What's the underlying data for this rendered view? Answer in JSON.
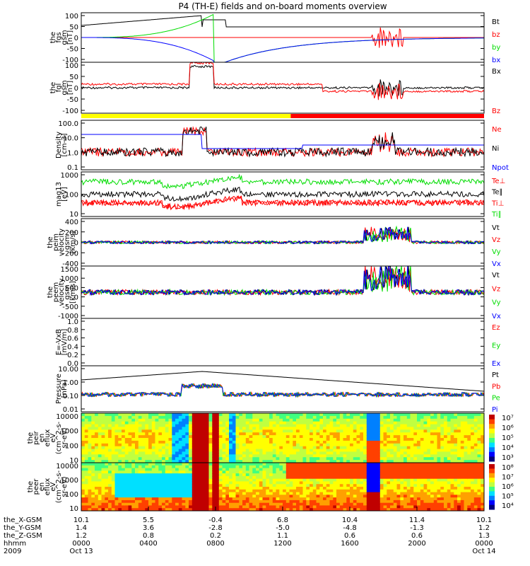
{
  "title": "P4 (TH-E) fields and on-board moments overview",
  "colors": {
    "black": "#000000",
    "red": "#ff0000",
    "green": "#00dd00",
    "blue": "#0000ff",
    "yellow": "#ffff00"
  },
  "chart_data": {
    "type": "line",
    "x_range": [
      "2009-10-13 00:00",
      "2009-10-14 00:00"
    ],
    "panels": [
      {
        "id": "fgs",
        "ylabel": [
          "the",
          "fgs",
          "gsm",
          "[nT]"
        ],
        "yticks": [
          "100",
          "50",
          "0",
          "-50",
          "-100"
        ],
        "ylim": [
          -100,
          100
        ],
        "log": false,
        "legend": [
          {
            "name": "Bt",
            "color": "black"
          },
          {
            "name": "bz",
            "color": "red"
          },
          {
            "name": "by",
            "color": "green"
          },
          {
            "name": "bx",
            "color": "blue"
          }
        ]
      },
      {
        "id": "fgl",
        "ylabel": [
          "the",
          "fgl",
          "gsm",
          "[nT]"
        ],
        "yticks": [
          "100",
          "50",
          "0",
          "-50",
          "-100"
        ],
        "ylim": [
          -120,
          100
        ],
        "log": false,
        "legend": [
          {
            "name": "Bx",
            "color": "black"
          },
          {
            "name": "Bz",
            "color": "red"
          }
        ]
      },
      {
        "id": "density",
        "ylabel": [
          "Density",
          "[cm-3]"
        ],
        "yticks": [
          "100.0",
          "10.0",
          "1.0",
          "0.1"
        ],
        "ylim": [
          0.1,
          100
        ],
        "log": true,
        "legend": [
          {
            "name": "Ne",
            "color": "red"
          },
          {
            "name": "Ni",
            "color": "black"
          },
          {
            "name": "Npot",
            "color": "blue"
          }
        ]
      },
      {
        "id": "temp",
        "ylabel": [
          "mag13",
          "[eV]"
        ],
        "yticks": [
          "1000",
          "100",
          "10"
        ],
        "ylim": [
          10,
          5000
        ],
        "log": true,
        "legend": [
          {
            "name": "Te⊥",
            "color": "red"
          },
          {
            "name": "Te∥",
            "color": "black"
          },
          {
            "name": "Ti⊥",
            "color": "red"
          },
          {
            "name": "Ti∥",
            "color": "green"
          }
        ]
      },
      {
        "id": "peim",
        "ylabel": [
          "the",
          "peim",
          "velocity",
          "gsm",
          "[km/s]"
        ],
        "yticks": [
          "400",
          "200",
          "0",
          "-200",
          "-400"
        ],
        "ylim": [
          -400,
          400
        ],
        "log": false,
        "legend": [
          {
            "name": "Vt",
            "color": "black"
          },
          {
            "name": "Vz",
            "color": "red"
          },
          {
            "name": "Vy",
            "color": "green"
          },
          {
            "name": "Vx",
            "color": "blue"
          }
        ]
      },
      {
        "id": "peem",
        "ylabel": [
          "the",
          "peem",
          "velocity",
          "gsm",
          "[km/s]"
        ],
        "yticks": [
          "1500",
          "1000",
          "500",
          "0",
          "-500",
          "-1000"
        ],
        "ylim": [
          -1300,
          1500
        ],
        "log": false,
        "legend": [
          {
            "name": "Vt",
            "color": "black"
          },
          {
            "name": "Vz",
            "color": "red"
          },
          {
            "name": "Vy",
            "color": "green"
          },
          {
            "name": "Vx",
            "color": "blue"
          }
        ]
      },
      {
        "id": "efield",
        "ylabel": [
          "E=-VxB",
          "[mV/m]"
        ],
        "yticks": [
          "1.0",
          "0.8",
          "0.6",
          "0.4",
          "0.2",
          "0.0"
        ],
        "ylim": [
          0,
          1
        ],
        "log": false,
        "legend": [
          {
            "name": "Ez",
            "color": "red"
          },
          {
            "name": "Ey",
            "color": "green"
          },
          {
            "name": "Ex",
            "color": "blue"
          }
        ]
      },
      {
        "id": "pressure",
        "ylabel": [
          "Pressure",
          "[nPa]"
        ],
        "yticks": [
          "10.00",
          "1.00",
          "0.10",
          "0.01"
        ],
        "ylim": [
          0.003,
          30
        ],
        "log": true,
        "legend": [
          {
            "name": "Pt",
            "color": "black"
          },
          {
            "name": "Pb",
            "color": "red"
          },
          {
            "name": "Pe",
            "color": "green"
          },
          {
            "name": "Pi",
            "color": "blue"
          }
        ]
      },
      {
        "id": "peir",
        "ylabel": [
          "the",
          "peir",
          "en",
          "eflux",
          "eV",
          "(cm^2-s-",
          "sr-eV)"
        ],
        "yticks": [
          "10000",
          "1000",
          "100",
          "10"
        ],
        "type": "heatmap",
        "colorbar": [
          "10⁷",
          "10⁶",
          "10⁵",
          "10⁴",
          "10³"
        ]
      },
      {
        "id": "peer",
        "ylabel": [
          "the",
          "peer",
          "en",
          "eflux",
          "eV",
          "(cm^2-s-",
          "sr-eV)"
        ],
        "yticks": [
          "10000",
          "1000",
          "100",
          "10"
        ],
        "type": "heatmap",
        "colorbar": [
          "10⁸",
          "10⁷",
          "10⁶",
          "10⁵",
          "10⁴"
        ]
      }
    ],
    "x_axis": {
      "row_labels": [
        "the_X-GSM",
        "the_Y-GSM",
        "the_Z-GSM",
        "hhmm",
        "2009"
      ],
      "columns": [
        {
          "x": [
            "10.1",
            "1.4",
            "1.2",
            "0000",
            "Oct 13"
          ]
        },
        {
          "x": [
            "5.5",
            "3.6",
            "0.8",
            "0400",
            ""
          ]
        },
        {
          "x": [
            "-0.4",
            "-2.8",
            "0.2",
            "0800",
            ""
          ]
        },
        {
          "x": [
            "6.8",
            "-5.0",
            "1.1",
            "1200",
            ""
          ]
        },
        {
          "x": [
            "10.4",
            "-4.8",
            "0.6",
            "1600",
            ""
          ]
        },
        {
          "x": [
            "11.4",
            "-1.3",
            "0.6",
            "2000",
            ""
          ]
        },
        {
          "x": [
            "10.1",
            "1.2",
            "1.3",
            "0000",
            "Oct 14"
          ]
        }
      ]
    }
  }
}
